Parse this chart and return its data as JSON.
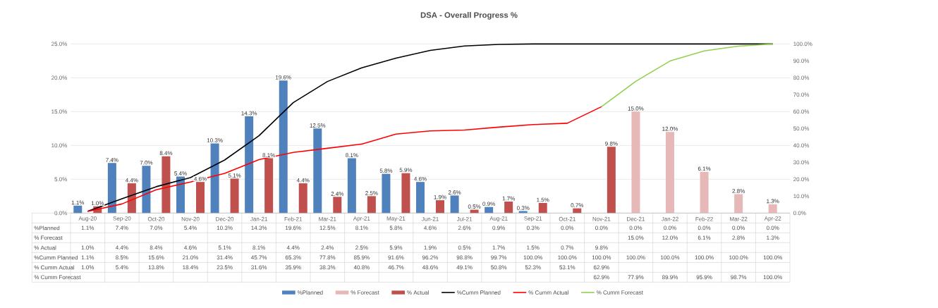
{
  "chart_data": {
    "type": "bar",
    "title": "DSA - Overall Progress %",
    "categories": [
      "Aug-20",
      "Sep-20",
      "Oct-20",
      "Nov-20",
      "Dec-20",
      "Jan-21",
      "Feb-21",
      "Mar-21",
      "Apr-21",
      "May-21",
      "Jun-21",
      "Jul-21",
      "Aug-21",
      "Sep-21",
      "Oct-21",
      "Nov-21",
      "Dec-21",
      "Jan-22",
      "Feb-22",
      "Mar-22",
      "Apr-22"
    ],
    "series": [
      {
        "name": "%Planned",
        "color": "#4f81bd",
        "values": [
          1.1,
          7.4,
          7.0,
          5.4,
          10.3,
          14.3,
          19.6,
          12.5,
          8.1,
          5.8,
          4.6,
          2.6,
          0.9,
          0.3,
          0.0,
          0.0,
          0.0,
          0.0,
          0.0,
          0.0,
          0.0
        ],
        "value_labels": [
          "1.1%",
          "7.4%",
          "7.0%",
          "5.4%",
          "10.3%",
          "14.3%",
          "19.6%",
          "12.5%",
          "8.1%",
          "5.8%",
          "4.6%",
          "2.6%",
          "0.9%",
          "0.3%",
          "0.0%",
          "0.0%",
          "0.0%",
          "0.0%",
          "0.0%",
          "0.0%",
          "0.0%"
        ]
      },
      {
        "name": "% Forecast",
        "color": "#e6b8b7",
        "values": [
          null,
          null,
          null,
          null,
          null,
          null,
          null,
          null,
          null,
          null,
          null,
          null,
          null,
          null,
          null,
          null,
          15.0,
          12.0,
          6.1,
          2.8,
          1.3
        ],
        "value_labels": [
          null,
          null,
          null,
          null,
          null,
          null,
          null,
          null,
          null,
          null,
          null,
          null,
          null,
          null,
          null,
          null,
          "15.0%",
          "12.0%",
          "6.1%",
          "2.8%",
          "1.3%"
        ]
      },
      {
        "name": "% Actual",
        "color": "#c0504d",
        "values": [
          1.0,
          4.4,
          8.4,
          4.6,
          5.1,
          8.1,
          4.4,
          2.4,
          2.5,
          5.9,
          1.9,
          0.5,
          1.7,
          1.5,
          0.7,
          9.8,
          null,
          null,
          null,
          null,
          null
        ],
        "value_labels": [
          "1.0%",
          "4.4%",
          "8.4%",
          "4.6%",
          "5.1%",
          "8.1%",
          "4.4%",
          "2.4%",
          "2.5%",
          "5.9%",
          "1.9%",
          "0.5%",
          "1.7%",
          "1.5%",
          "0.7%",
          "9.8%",
          null,
          null,
          null,
          null,
          null
        ]
      },
      {
        "name": "%Cumm Planned",
        "type": "line",
        "axis": "y2",
        "color": "#000000",
        "values": [
          1.1,
          8.5,
          15.6,
          21.0,
          31.4,
          45.7,
          65.3,
          77.8,
          85.9,
          91.6,
          96.2,
          98.8,
          99.7,
          100.0,
          100.0,
          100.0,
          100.0,
          100.0,
          100.0,
          100.0,
          100.0
        ],
        "value_labels": [
          "1.1%",
          "8.5%",
          "15.6%",
          "21.0%",
          "31.4%",
          "45.7%",
          "65.3%",
          "77.8%",
          "85.9%",
          "91.6%",
          "96.2%",
          "98.8%",
          "99.7%",
          "100.0%",
          "100.0%",
          "100.0%",
          "100.0%",
          "100.0%",
          "100.0%",
          "100.0%",
          "100.0%"
        ]
      },
      {
        "name": "% Cumm Actual",
        "type": "line",
        "axis": "y2",
        "color": "#ff0000",
        "values": [
          1.0,
          5.4,
          13.8,
          18.4,
          23.5,
          31.6,
          35.9,
          38.3,
          40.8,
          46.7,
          48.6,
          49.1,
          50.8,
          52.3,
          53.1,
          62.9,
          null,
          null,
          null,
          null,
          null
        ],
        "value_labels": [
          "1.0%",
          "5.4%",
          "13.8%",
          "18.4%",
          "23.5%",
          "31.6%",
          "35.9%",
          "38.3%",
          "40.8%",
          "46.7%",
          "48.6%",
          "49.1%",
          "50.8%",
          "52.3%",
          "53.1%",
          "62.9%",
          null,
          null,
          null,
          null,
          null
        ]
      },
      {
        "name": "% Cumm Forecast",
        "type": "line",
        "axis": "y2",
        "color": "#92d050",
        "values": [
          null,
          null,
          null,
          null,
          null,
          null,
          null,
          null,
          null,
          null,
          null,
          null,
          null,
          null,
          null,
          62.9,
          77.9,
          89.9,
          95.9,
          98.7,
          100.0
        ],
        "value_labels": [
          null,
          null,
          null,
          null,
          null,
          null,
          null,
          null,
          null,
          null,
          null,
          null,
          null,
          null,
          null,
          "62.9%",
          "77.9%",
          "89.9%",
          "95.9%",
          "98.7%",
          "100.0%"
        ]
      }
    ],
    "ylim": [
      0,
      25
    ],
    "yticks": [
      {
        "value": 0,
        "label": "0.0%"
      },
      {
        "value": 5,
        "label": "5.0%"
      },
      {
        "value": 10,
        "label": "10.0%"
      },
      {
        "value": 15,
        "label": "15.0%"
      },
      {
        "value": 20,
        "label": "20.0%"
      },
      {
        "value": 25,
        "label": "25.0%"
      }
    ],
    "y2lim": [
      0,
      100
    ],
    "y2ticks": [
      {
        "value": 0,
        "label": "0.0%"
      },
      {
        "value": 10,
        "label": "10.0%"
      },
      {
        "value": 20,
        "label": "20.0%"
      },
      {
        "value": 30,
        "label": "30.0%"
      },
      {
        "value": 40,
        "label": "40.0%"
      },
      {
        "value": 50,
        "label": "50.0%"
      },
      {
        "value": 60,
        "label": "60.0%"
      },
      {
        "value": 70,
        "label": "70.0%"
      },
      {
        "value": 80,
        "label": "80.0%"
      },
      {
        "value": 90,
        "label": "90.0%"
      },
      {
        "value": 100,
        "label": "100.0%"
      }
    ],
    "grid": "y",
    "legend": "bottom",
    "data_labels": true
  }
}
